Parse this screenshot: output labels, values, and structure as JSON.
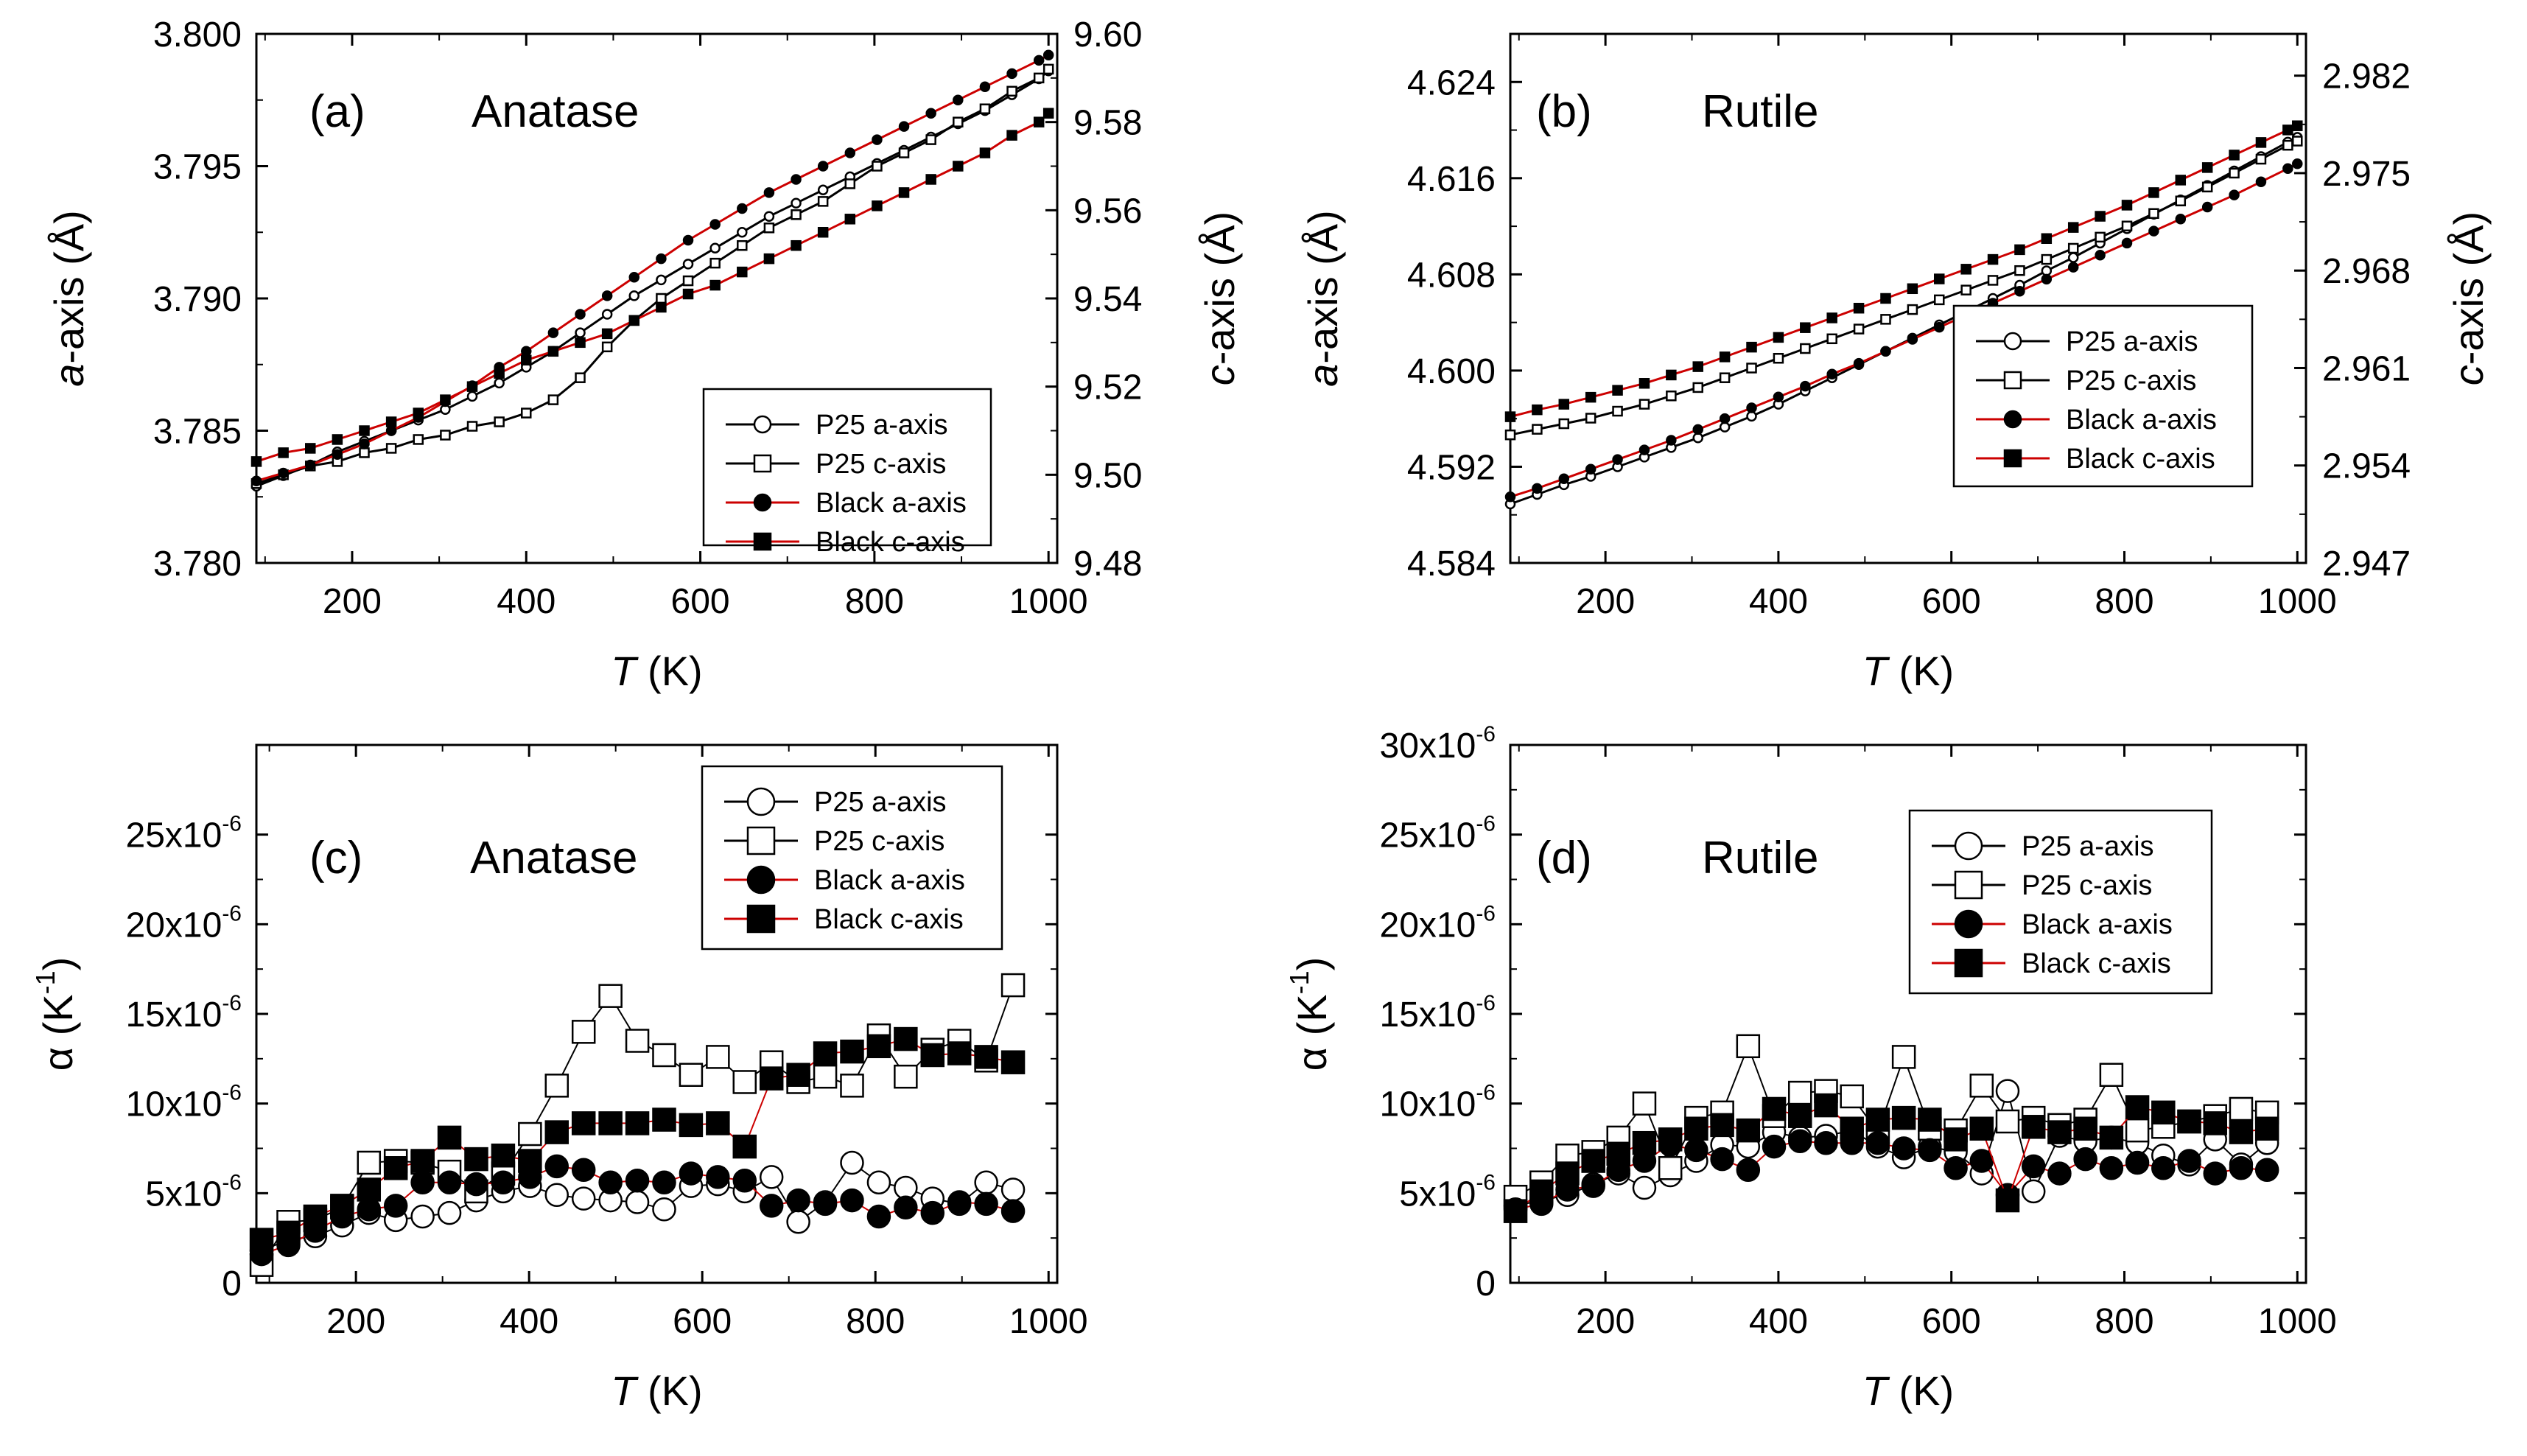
{
  "chart_data": [
    {
      "id": "a",
      "type": "line",
      "panel_tag": "(a)",
      "panel_title": "Anatase",
      "xlabel": {
        "italic": "T",
        "rest": " (K)"
      },
      "ylabel_left": {
        "italic": "a",
        "rest": "-axis (Å)"
      },
      "ylabel_right": {
        "italic": "c",
        "rest": "-axis (Å)"
      },
      "xlim": [
        90,
        1010
      ],
      "ylim_left": [
        3.78,
        3.8
      ],
      "ylim_right": [
        9.48,
        9.6
      ],
      "xticks": [
        200,
        400,
        600,
        800,
        1000
      ],
      "yticks_left": [
        3.78,
        3.785,
        3.79,
        3.795,
        3.8
      ],
      "ytick_labels_left": [
        "3.780",
        "3.785",
        "3.790",
        "3.795",
        "3.800"
      ],
      "yticks_right": [
        9.48,
        9.5,
        9.52,
        9.54,
        9.56,
        9.58,
        9.6
      ],
      "ytick_labels_right": [
        "9.48",
        "9.50",
        "9.52",
        "9.54",
        "9.56",
        "9.58",
        "9.60"
      ],
      "x": [
        90,
        121,
        152,
        183,
        214,
        245,
        276,
        307,
        338,
        369,
        400,
        431,
        462,
        493,
        524,
        555,
        586,
        617,
        648,
        679,
        710,
        741,
        772,
        803,
        834,
        865,
        896,
        927,
        958,
        989,
        1000
      ],
      "series": [
        {
          "name": "P25 a-axis",
          "axis": "left",
          "marker": "circle-open",
          "line": "#000000",
          "values": [
            3.7829,
            3.7833,
            3.7837,
            3.7842,
            3.7846,
            3.785,
            3.7854,
            3.7858,
            3.7863,
            3.7868,
            3.7874,
            3.788,
            3.7887,
            3.7894,
            3.7901,
            3.7907,
            3.7913,
            3.7919,
            3.7925,
            3.7931,
            3.7936,
            3.7941,
            3.7946,
            3.7951,
            3.7956,
            3.7961,
            3.7966,
            3.7971,
            3.7977,
            3.7983,
            3.7986
          ]
        },
        {
          "name": "P25 c-axis",
          "axis": "right",
          "marker": "square-open",
          "line": "#000000",
          "values": [
            9.498,
            9.5,
            9.502,
            9.503,
            9.505,
            9.506,
            9.508,
            9.509,
            9.511,
            9.512,
            9.514,
            9.517,
            9.522,
            9.529,
            9.535,
            9.54,
            9.544,
            9.548,
            9.552,
            9.556,
            9.559,
            9.562,
            9.566,
            9.57,
            9.573,
            9.576,
            9.58,
            9.583,
            9.587,
            9.59,
            9.592
          ]
        },
        {
          "name": "Black a-axis",
          "axis": "left",
          "marker": "circle-filled",
          "line": "#cc0000",
          "values": [
            3.7831,
            3.7834,
            3.7837,
            3.7841,
            3.7845,
            3.785,
            3.7855,
            3.7861,
            3.7867,
            3.7874,
            3.788,
            3.7887,
            3.7894,
            3.7901,
            3.7908,
            3.7915,
            3.7922,
            3.7928,
            3.7934,
            3.794,
            3.7945,
            3.795,
            3.7955,
            3.796,
            3.7965,
            3.797,
            3.7975,
            3.798,
            3.7985,
            3.799,
            3.7992
          ]
        },
        {
          "name": "Black c-axis",
          "axis": "right",
          "marker": "square-filled",
          "line": "#cc0000",
          "values": [
            9.503,
            9.505,
            9.506,
            9.508,
            9.51,
            9.512,
            9.514,
            9.517,
            9.52,
            9.523,
            9.526,
            9.528,
            9.53,
            9.532,
            9.535,
            9.538,
            9.541,
            9.543,
            9.546,
            9.549,
            9.552,
            9.555,
            9.558,
            9.561,
            9.564,
            9.567,
            9.57,
            9.573,
            9.577,
            9.58,
            9.582
          ]
        }
      ],
      "legend_position": "bottom-right"
    },
    {
      "id": "b",
      "type": "line",
      "panel_tag": "(b)",
      "panel_title": "Rutile",
      "xlabel": {
        "italic": "T",
        "rest": " (K)"
      },
      "ylabel_left": {
        "italic": "a",
        "rest": "-axis (Å)"
      },
      "ylabel_right": {
        "italic": "c",
        "rest": "-axis (Å)"
      },
      "xlim": [
        90,
        1010
      ],
      "ylim_left": [
        4.584,
        4.628
      ],
      "ylim_right": [
        2.947,
        2.985
      ],
      "xticks": [
        200,
        400,
        600,
        800,
        1000
      ],
      "yticks_left": [
        4.584,
        4.592,
        4.6,
        4.608,
        4.616,
        4.624
      ],
      "ytick_labels_left": [
        "4.584",
        "4.592",
        "4.600",
        "4.608",
        "4.616",
        "4.624"
      ],
      "yticks_right": [
        2.947,
        2.954,
        2.961,
        2.968,
        2.975,
        2.982
      ],
      "ytick_labels_right": [
        "2.947",
        "2.954",
        "2.961",
        "2.968",
        "2.975",
        "2.982"
      ],
      "x": [
        90,
        121,
        152,
        183,
        214,
        245,
        276,
        307,
        338,
        369,
        400,
        431,
        462,
        493,
        524,
        555,
        586,
        617,
        648,
        679,
        710,
        741,
        772,
        803,
        834,
        865,
        896,
        927,
        958,
        989,
        1000
      ],
      "series": [
        {
          "name": "P25 a-axis",
          "axis": "left",
          "marker": "circle-open",
          "line": "#000000",
          "values": [
            4.5889,
            4.5897,
            4.5905,
            4.5912,
            4.592,
            4.5928,
            4.5936,
            4.5944,
            4.5953,
            4.5962,
            4.5972,
            4.5983,
            4.5994,
            4.6005,
            4.6016,
            4.6027,
            4.6038,
            4.6049,
            4.606,
            4.6071,
            4.6083,
            4.6094,
            4.6106,
            4.6118,
            4.613,
            4.6142,
            4.6154,
            4.6166,
            4.6178,
            4.619,
            4.6194
          ]
        },
        {
          "name": "P25 c-axis",
          "axis": "right",
          "marker": "square-open",
          "line": "#000000",
          "values": [
            2.9562,
            2.9566,
            2.957,
            2.9574,
            2.9579,
            2.9584,
            2.959,
            2.9596,
            2.9603,
            2.961,
            2.9617,
            2.9624,
            2.9631,
            2.9638,
            2.9645,
            2.9652,
            2.9659,
            2.9666,
            2.9673,
            2.968,
            2.9688,
            2.9696,
            2.9704,
            2.9712,
            2.9721,
            2.973,
            2.974,
            2.975,
            2.976,
            2.977,
            2.9773
          ]
        },
        {
          "name": "Black a-axis",
          "axis": "left",
          "marker": "circle-filled",
          "line": "#cc0000",
          "values": [
            4.5895,
            4.5902,
            4.591,
            4.5918,
            4.5926,
            4.5934,
            4.5942,
            4.5951,
            4.596,
            4.5969,
            4.5978,
            4.5987,
            4.5997,
            4.6006,
            4.6016,
            4.6026,
            4.6036,
            4.6046,
            4.6056,
            4.6066,
            4.6076,
            4.6086,
            4.6096,
            4.6106,
            4.6116,
            4.6126,
            4.6136,
            4.6146,
            4.6157,
            4.6168,
            4.6172
          ]
        },
        {
          "name": "Black c-axis",
          "axis": "right",
          "marker": "square-filled",
          "line": "#cc0000",
          "values": [
            2.9575,
            2.958,
            2.9584,
            2.9589,
            2.9594,
            2.9599,
            2.9605,
            2.9611,
            2.9618,
            2.9625,
            2.9632,
            2.9639,
            2.9646,
            2.9653,
            2.966,
            2.9667,
            2.9674,
            2.9681,
            2.9688,
            2.9695,
            2.9703,
            2.9711,
            2.9719,
            2.9727,
            2.9736,
            2.9745,
            2.9754,
            2.9763,
            2.9772,
            2.9781,
            2.9784
          ]
        }
      ],
      "legend_position": "center-right"
    },
    {
      "id": "c",
      "type": "line",
      "panel_tag": "(c)",
      "panel_title": "Anatase",
      "xlabel": {
        "italic": "T",
        "rest": " (K)"
      },
      "ylabel_alpha": {
        "symbol": "α",
        "rest": " (K",
        "sup": "-1",
        "end": ")"
      },
      "xlim": [
        85,
        1010
      ],
      "ylim_left": [
        0,
        3e-05
      ],
      "xticks": [
        200,
        400,
        600,
        800,
        1000
      ],
      "yticks_left": [
        0,
        5e-06,
        1e-05,
        1.5e-05,
        2e-05,
        2.5e-05
      ],
      "ytick_labels_left": [
        {
          "base": "0",
          "exp": ""
        },
        {
          "base": "5x10",
          "exp": "-6"
        },
        {
          "base": "10x10",
          "exp": "-6"
        },
        {
          "base": "15x10",
          "exp": "-6"
        },
        {
          "base": "20x10",
          "exp": "-6"
        },
        {
          "base": "25x10",
          "exp": "-6"
        }
      ],
      "x": [
        91,
        122,
        153,
        184,
        215,
        246,
        277,
        308,
        339,
        370,
        401,
        432,
        463,
        494,
        525,
        556,
        587,
        618,
        649,
        680,
        711,
        742,
        773,
        804,
        835,
        866,
        897,
        928,
        959
      ],
      "series": [
        {
          "name": "P25 a-axis",
          "marker": "circle-open",
          "line": "#000000",
          "values": [
            1.8e-06,
            2.4e-06,
            2.6e-06,
            3.2e-06,
            3.9e-06,
            3.5e-06,
            3.7e-06,
            3.9e-06,
            4.6e-06,
            5.1e-06,
            5.4e-06,
            4.9e-06,
            4.7e-06,
            4.6e-06,
            4.5e-06,
            4.1e-06,
            5.4e-06,
            5.5e-06,
            5.1e-06,
            5.9e-06,
            3.4e-06,
            4.5e-06,
            6.7e-06,
            5.6e-06,
            5.3e-06,
            4.7e-06,
            4.4e-06,
            5.6e-06,
            5.2e-06
          ]
        },
        {
          "name": "P25 c-axis",
          "marker": "square-open",
          "line": "#000000",
          "values": [
            1e-06,
            3.4e-06,
            3.5e-06,
            4.2e-06,
            6.7e-06,
            6.8e-06,
            6.7e-06,
            6.2e-06,
            5.1e-06,
            6.1e-06,
            8.3e-06,
            1.1e-05,
            1.4e-05,
            1.6e-05,
            1.35e-05,
            1.27e-05,
            1.16e-05,
            1.26e-05,
            1.12e-05,
            1.23e-05,
            1.12e-05,
            1.15e-05,
            1.1e-05,
            1.38e-05,
            1.15e-05,
            1.3e-05,
            1.35e-05,
            1.24e-05,
            1.66e-05
          ]
        },
        {
          "name": "Black a-axis",
          "marker": "circle-filled",
          "line": "#cc0000",
          "values": [
            1.6e-06,
            2.1e-06,
            2.9e-06,
            3.7e-06,
            4.1e-06,
            4.3e-06,
            5.6e-06,
            5.6e-06,
            5.5e-06,
            5.6e-06,
            5.9e-06,
            6.5e-06,
            6.3e-06,
            5.6e-06,
            5.7e-06,
            5.6e-06,
            6.1e-06,
            5.9e-06,
            5.7e-06,
            4.3e-06,
            4.6e-06,
            4.4e-06,
            4.6e-06,
            3.7e-06,
            4.2e-06,
            3.9e-06,
            4.5e-06,
            4.4e-06,
            4e-06
          ]
        },
        {
          "name": "Black c-axis",
          "marker": "square-filled",
          "line": "#cc0000",
          "values": [
            2.4e-06,
            2.8e-06,
            3.7e-06,
            4.3e-06,
            5.2e-06,
            6.4e-06,
            6.8e-06,
            8.1e-06,
            6.9e-06,
            7.1e-06,
            6.8e-06,
            8.4e-06,
            8.9e-06,
            8.9e-06,
            8.9e-06,
            9.1e-06,
            8.8e-06,
            8.9e-06,
            7.6e-06,
            1.14e-05,
            1.16e-05,
            1.28e-05,
            1.29e-05,
            1.32e-05,
            1.36e-05,
            1.27e-05,
            1.28e-05,
            1.26e-05,
            1.23e-05
          ]
        }
      ],
      "legend_position": "top-right"
    },
    {
      "id": "d",
      "type": "line",
      "panel_tag": "(d)",
      "panel_title": "Rutile",
      "xlabel": {
        "italic": "T",
        "rest": " (K)"
      },
      "ylabel_alpha": {
        "symbol": "α",
        "rest": " (K",
        "sup": "-1",
        "end": ")"
      },
      "xlim": [
        90,
        1010
      ],
      "ylim_left": [
        0,
        3e-05
      ],
      "xticks": [
        200,
        400,
        600,
        800,
        1000
      ],
      "yticks_left": [
        0,
        5e-06,
        1e-05,
        1.5e-05,
        2e-05,
        2.5e-05,
        3e-05
      ],
      "ytick_labels_left": [
        {
          "base": "0",
          "exp": ""
        },
        {
          "base": "5x10",
          "exp": "-6"
        },
        {
          "base": "10x10",
          "exp": "-6"
        },
        {
          "base": "15x10",
          "exp": "-6"
        },
        {
          "base": "20x10",
          "exp": "-6"
        },
        {
          "base": "25x10",
          "exp": "-6"
        },
        {
          "base": "30x10",
          "exp": "-6"
        }
      ],
      "x": [
        96,
        126,
        156,
        186,
        215,
        245,
        275,
        305,
        335,
        365,
        395,
        425,
        455,
        485,
        515,
        545,
        575,
        605,
        635,
        665,
        695,
        725,
        755,
        785,
        815,
        845,
        875,
        905,
        935,
        965
      ],
      "series": [
        {
          "name": "P25 a-axis",
          "marker": "circle-open",
          "line": "#000000",
          "values": [
            4.3e-06,
            4.6e-06,
            4.9e-06,
            5.5e-06,
            6.1e-06,
            5.3e-06,
            6e-06,
            6.8e-06,
            7.7e-06,
            7.6e-06,
            8.4e-06,
            8.1e-06,
            8.2e-06,
            8.5e-06,
            7.6e-06,
            7e-06,
            7.6e-06,
            7.3e-06,
            6.1e-06,
            1.07e-05,
            5.1e-06,
            8.2e-06,
            7.9e-06,
            8.1e-06,
            7.8e-06,
            7.1e-06,
            6.6e-06,
            8e-06,
            6.6e-06,
            7.8e-06
          ]
        },
        {
          "name": "P25 c-axis",
          "marker": "square-open",
          "line": "#000000",
          "values": [
            4.8e-06,
            5.6e-06,
            7.1e-06,
            7.3e-06,
            8.1e-06,
            1e-05,
            6.4e-06,
            9.2e-06,
            9.5e-06,
            1.32e-05,
            9.3e-06,
            1.06e-05,
            1.07e-05,
            1.04e-05,
            8.4e-06,
            1.26e-05,
            8.6e-06,
            8.5e-06,
            1.1e-05,
            9e-06,
            9.2e-06,
            8.8e-06,
            9.1e-06,
            1.16e-05,
            8.5e-06,
            8.7e-06,
            9e-06,
            9.3e-06,
            9.7e-06,
            9.5e-06
          ]
        },
        {
          "name": "Black a-axis",
          "marker": "circle-filled",
          "line": "#cc0000",
          "values": [
            4.1e-06,
            4.4e-06,
            5.2e-06,
            5.4e-06,
            6.3e-06,
            6.8e-06,
            7.7e-06,
            7.4e-06,
            6.9e-06,
            6.3e-06,
            7.6e-06,
            7.9e-06,
            7.8e-06,
            7.8e-06,
            7.8e-06,
            7.5e-06,
            7.4e-06,
            6.4e-06,
            6.8e-06,
            4.9e-06,
            6.5e-06,
            6.1e-06,
            6.9e-06,
            6.4e-06,
            6.7e-06,
            6.4e-06,
            6.8e-06,
            6.1e-06,
            6.4e-06,
            6.3e-06
          ]
        },
        {
          "name": "Black c-axis",
          "marker": "square-filled",
          "line": "#cc0000",
          "values": [
            4e-06,
            5.1e-06,
            6.1e-06,
            6.8e-06,
            7.2e-06,
            7.8e-06,
            8e-06,
            8.6e-06,
            8.8e-06,
            8.5e-06,
            9.7e-06,
            9.3e-06,
            9.9e-06,
            8.6e-06,
            9.1e-06,
            9.2e-06,
            9.1e-06,
            8e-06,
            8.6e-06,
            4.6e-06,
            8.7e-06,
            8.4e-06,
            8.6e-06,
            8.1e-06,
            9.8e-06,
            9.5e-06,
            9e-06,
            8.9e-06,
            8.4e-06,
            8.6e-06
          ]
        }
      ],
      "legend_position": "top-right"
    }
  ]
}
